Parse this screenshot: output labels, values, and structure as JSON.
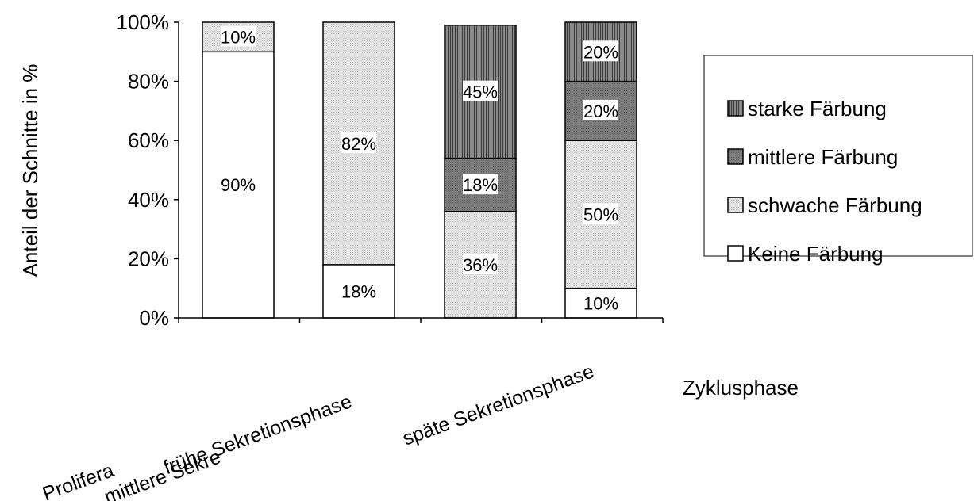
{
  "chart_data": {
    "type": "bar",
    "stacked": true,
    "categories": [
      "Proliferationsphase",
      "frühe Sekretionsphase",
      "mittlere Sekretionsphase",
      "späte Sekretionsphase"
    ],
    "category_labels_visible": [
      "Prolifera",
      "frühe Sekretionsphase",
      "mittlere Sekre",
      "späte Sekretionsphase"
    ],
    "series": [
      {
        "name": "Keine Färbung",
        "values": [
          90,
          18,
          0,
          10
        ],
        "color": "#ffffff",
        "pattern": "none"
      },
      {
        "name": "schwache Färbung",
        "values": [
          10,
          82,
          36,
          50
        ],
        "color": "#e0e0e0",
        "pattern": "fine-dots"
      },
      {
        "name": "mittlere Färbung",
        "values": [
          0,
          0,
          18,
          20
        ],
        "color": "#7a7a7a",
        "pattern": "dark-dots"
      },
      {
        "name": "starke Färbung",
        "values": [
          0,
          0,
          45,
          20
        ],
        "color": "#666666",
        "pattern": "vertical-stripes"
      }
    ],
    "data_labels": [
      [
        "90%",
        "10%",
        "",
        ""
      ],
      [
        "18%",
        "82%",
        "",
        ""
      ],
      [
        "",
        "36%",
        "18%",
        "45%"
      ],
      [
        "10%",
        "50%",
        "20%",
        "20%"
      ]
    ],
    "xlabel": "Zyklusphase",
    "ylabel": "Anteil der Schnitte in %",
    "ylim": [
      0,
      100
    ],
    "yticks": [
      "0%",
      "20%",
      "40%",
      "60%",
      "80%",
      "100%"
    ],
    "grid": false,
    "legend": {
      "placement": "right",
      "order": [
        "starke Färbung",
        "mittlere Färbung",
        "schwache Färbung",
        "Keine Färbung"
      ]
    }
  }
}
